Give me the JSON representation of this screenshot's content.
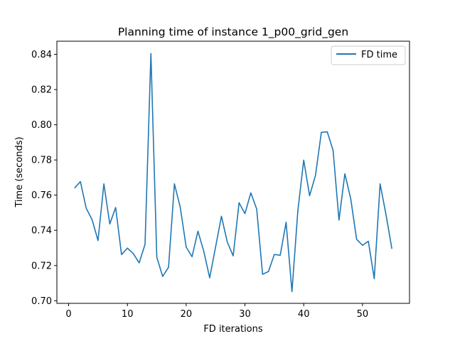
{
  "chart_data": {
    "type": "line",
    "title": "Planning time of instance 1_p00_grid_gen",
    "xlabel": "FD iterations",
    "ylabel": "Time (seconds)",
    "xlim": [
      -2,
      58
    ],
    "ylim": [
      0.6985,
      0.8475
    ],
    "xticks": [
      0,
      10,
      20,
      30,
      40,
      50
    ],
    "yticks": [
      0.7,
      0.72,
      0.74,
      0.76,
      0.78,
      0.8,
      0.82,
      0.84
    ],
    "legend": "upper right",
    "grid": false,
    "series": [
      {
        "name": "FD time",
        "color": "#1f77b4",
        "x": [
          1,
          2,
          3,
          4,
          5,
          6,
          7,
          8,
          9,
          10,
          11,
          12,
          13,
          14,
          15,
          16,
          17,
          18,
          19,
          20,
          21,
          22,
          23,
          24,
          25,
          26,
          27,
          28,
          29,
          30,
          31,
          32,
          33,
          34,
          35,
          36,
          37,
          38,
          39,
          40,
          41,
          42,
          43,
          44,
          45,
          46,
          47,
          48,
          49,
          50,
          51,
          52,
          53,
          54,
          55
        ],
        "y": [
          0.764,
          0.7677,
          0.7525,
          0.746,
          0.7342,
          0.7664,
          0.7436,
          0.753,
          0.7262,
          0.7299,
          0.7268,
          0.7215,
          0.732,
          0.8405,
          0.7248,
          0.7138,
          0.719,
          0.7664,
          0.753,
          0.7305,
          0.725,
          0.7395,
          0.728,
          0.713,
          0.7305,
          0.748,
          0.7333,
          0.7255,
          0.7557,
          0.7495,
          0.7613,
          0.7521,
          0.715,
          0.7166,
          0.7263,
          0.7258,
          0.7446,
          0.7052,
          0.751,
          0.7799,
          0.7597,
          0.7712,
          0.7957,
          0.796,
          0.7854,
          0.7458,
          0.7721,
          0.758,
          0.7349,
          0.7315,
          0.7338,
          0.7125,
          0.7664,
          0.749,
          0.7295
        ]
      }
    ]
  }
}
